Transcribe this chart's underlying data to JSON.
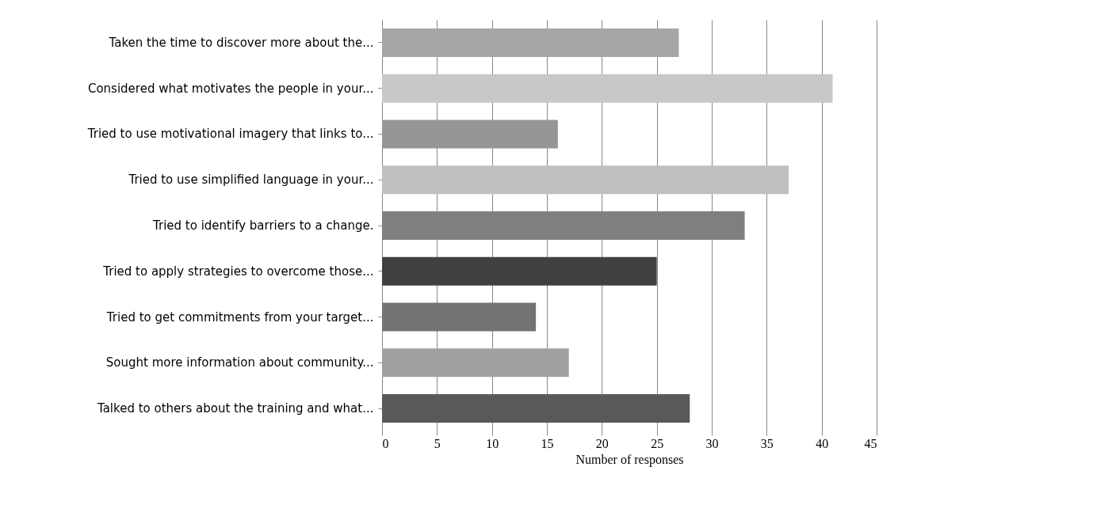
{
  "chart_data": {
    "type": "bar",
    "orientation": "horizontal",
    "xlabel": "Number of responses",
    "categories": [
      "Taken the time to discover more about the...",
      "Considered what motivates the people in your...",
      "Tried to use motivational imagery that links to...",
      "Tried to use simplified language in your...",
      "Tried to identify barriers to a change.",
      "Tried to apply strategies to overcome those...",
      "Tried to get commitments from your target...",
      "Sought more information about community...",
      "Talked to others about the training and what..."
    ],
    "values": [
      27,
      41,
      16,
      37,
      33,
      25,
      14,
      17,
      28
    ],
    "colors": [
      "#a6a6a6",
      "#c8c8c8",
      "#969696",
      "#bfbfbf",
      "#7f7f7f",
      "#404040",
      "#737373",
      "#a0a0a0",
      "#595959"
    ],
    "xlim": [
      0,
      45
    ],
    "xticks": [
      0,
      5,
      10,
      15,
      20,
      25,
      30,
      35,
      40,
      45
    ],
    "grid": "x",
    "legend": false
  }
}
